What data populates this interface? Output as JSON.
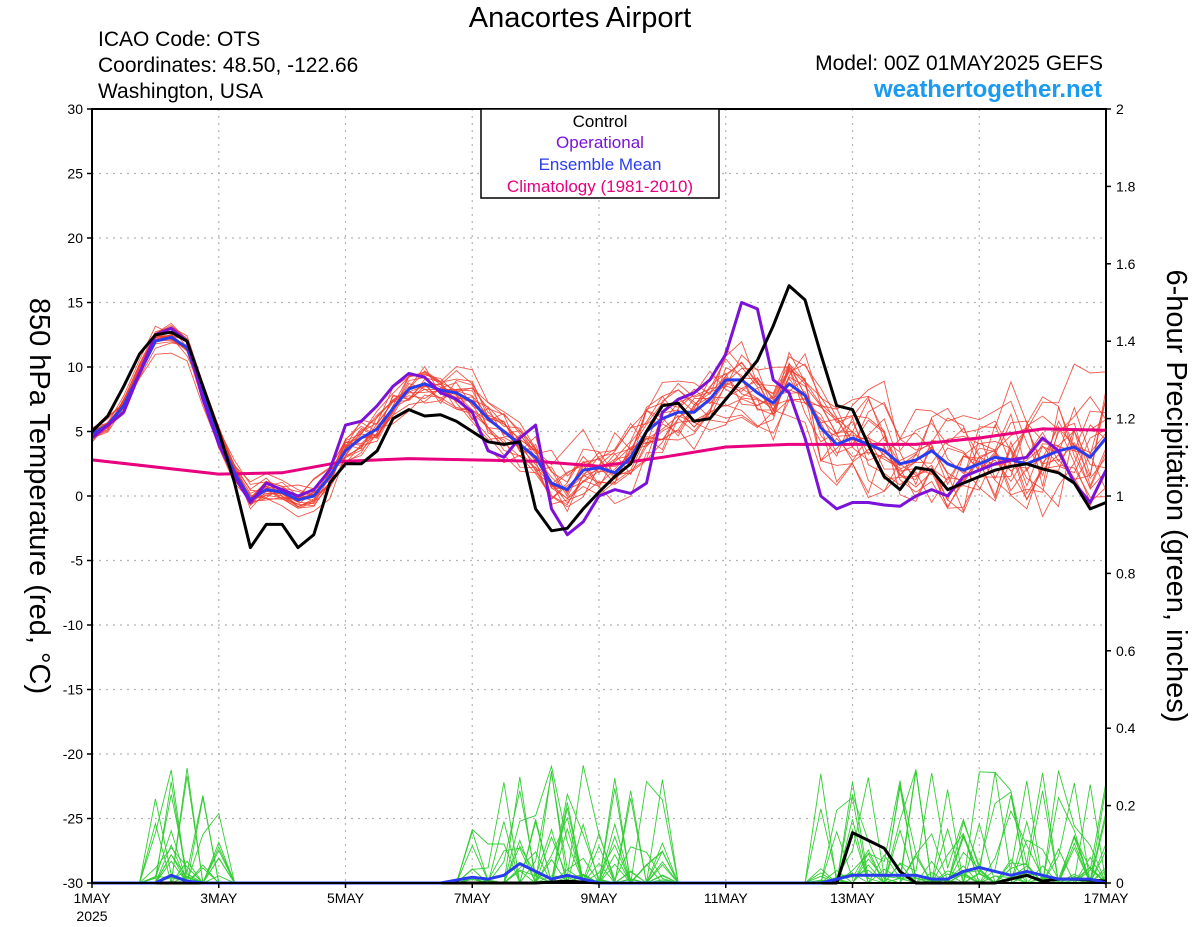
{
  "header": {
    "title": "Anacortes Airport",
    "icao": "ICAO Code: OTS",
    "coordinates": "Coordinates: 48.50, -122.66",
    "region": "Washington, USA",
    "model": "Model: 00Z 01MAY2025 GEFS",
    "brand": "weathertogether.net"
  },
  "colors": {
    "control": "#000000",
    "operational": "#7b12d9",
    "ensemble_mean": "#2a3cf0",
    "climatology": "#e8007f",
    "members_temp": "#ef3b2c",
    "members_precip": "#33cc33",
    "brand": "#1a9af0",
    "grid": "#b4b4b4"
  },
  "chart_data": {
    "type": "line",
    "ylabel_left": "850 hPa Temperature (red, °C)",
    "ylabel_right": "6-hour Precipitation (green, inches)",
    "xlim": [
      0,
      16
    ],
    "ylim_left": [
      -30,
      30
    ],
    "ylim_right": [
      0,
      2
    ],
    "yticks_left": [
      -30,
      -25,
      -20,
      -15,
      -10,
      -5,
      0,
      5,
      10,
      15,
      20,
      25,
      30
    ],
    "yticks_right": [
      0,
      0.2,
      0.4,
      0.6,
      0.8,
      1,
      1.2,
      1.4,
      1.6,
      1.8,
      2
    ],
    "xticks": [
      {
        "x": 0,
        "label": "1MAY"
      },
      {
        "x": 2,
        "label": "3MAY"
      },
      {
        "x": 4,
        "label": "5MAY"
      },
      {
        "x": 6,
        "label": "7MAY"
      },
      {
        "x": 8,
        "label": "9MAY"
      },
      {
        "x": 10,
        "label": "11MAY"
      },
      {
        "x": 12,
        "label": "13MAY"
      },
      {
        "x": 14,
        "label": "15MAY"
      },
      {
        "x": 16,
        "label": "17MAY"
      }
    ],
    "year_label": "2025",
    "grid": true,
    "legend": {
      "placement": "top-center",
      "entries": [
        {
          "label": "Control",
          "color": "#000000"
        },
        {
          "label": "Operational",
          "color": "#7b12d9"
        },
        {
          "label": "Ensemble Mean",
          "color": "#2a3cf0"
        },
        {
          "label": "Climatology (1981-2010)",
          "color": "#e8007f"
        }
      ]
    },
    "temperature_series": [
      {
        "key": "control",
        "color": "#000000",
        "points": [
          [
            0,
            5
          ],
          [
            0.25,
            6.2
          ],
          [
            0.5,
            8.5
          ],
          [
            0.75,
            11
          ],
          [
            1,
            12.5
          ],
          [
            1.25,
            12.7
          ],
          [
            1.5,
            12
          ],
          [
            1.75,
            8.5
          ],
          [
            2,
            5
          ],
          [
            2.25,
            1
          ],
          [
            2.5,
            -4
          ],
          [
            2.75,
            -2.2
          ],
          [
            3,
            -2.2
          ],
          [
            3.25,
            -4
          ],
          [
            3.5,
            -3
          ],
          [
            3.75,
            1
          ],
          [
            4,
            2.5
          ],
          [
            4.25,
            2.5
          ],
          [
            4.5,
            3.5
          ],
          [
            4.75,
            6
          ],
          [
            5,
            6.7
          ],
          [
            5.25,
            6.2
          ],
          [
            5.5,
            6.3
          ],
          [
            5.75,
            5.8
          ],
          [
            6,
            5
          ],
          [
            6.25,
            4.2
          ],
          [
            6.5,
            4
          ],
          [
            6.75,
            4.2
          ],
          [
            7,
            -1
          ],
          [
            7.25,
            -2.7
          ],
          [
            7.5,
            -2.5
          ],
          [
            7.75,
            -1
          ],
          [
            8,
            0.3
          ],
          [
            8.25,
            1.5
          ],
          [
            8.5,
            2.5
          ],
          [
            8.75,
            5
          ],
          [
            9,
            7
          ],
          [
            9.25,
            7.2
          ],
          [
            9.5,
            5.8
          ],
          [
            9.75,
            6
          ],
          [
            10,
            7.5
          ],
          [
            10.25,
            9
          ],
          [
            10.5,
            10.5
          ],
          [
            10.75,
            13.2
          ],
          [
            11,
            16.3
          ],
          [
            11.25,
            15.2
          ],
          [
            11.5,
            11
          ],
          [
            11.75,
            7
          ],
          [
            12,
            6.7
          ],
          [
            12.25,
            4
          ],
          [
            12.5,
            1.5
          ],
          [
            12.75,
            0.5
          ],
          [
            13,
            2.2
          ],
          [
            13.25,
            2
          ],
          [
            13.5,
            0.5
          ],
          [
            13.75,
            1
          ],
          [
            14,
            1.5
          ],
          [
            14.25,
            2
          ],
          [
            14.5,
            2.3
          ],
          [
            14.75,
            2.5
          ],
          [
            15,
            2.1
          ],
          [
            15.25,
            1.8
          ],
          [
            15.5,
            1
          ],
          [
            15.75,
            -1
          ],
          [
            16,
            -0.5
          ]
        ]
      },
      {
        "key": "operational",
        "color": "#7b12d9",
        "points": [
          [
            0,
            4.5
          ],
          [
            0.25,
            5.5
          ],
          [
            0.5,
            6.5
          ],
          [
            0.75,
            9.5
          ],
          [
            1,
            12.5
          ],
          [
            1.25,
            13
          ],
          [
            1.5,
            12
          ],
          [
            1.75,
            7.5
          ],
          [
            2,
            4
          ],
          [
            2.25,
            1.5
          ],
          [
            2.5,
            -0.5
          ],
          [
            2.75,
            1
          ],
          [
            3,
            0.5
          ],
          [
            3.25,
            0
          ],
          [
            3.5,
            0.5
          ],
          [
            3.75,
            2
          ],
          [
            4,
            5.5
          ],
          [
            4.25,
            5.8
          ],
          [
            4.5,
            7
          ],
          [
            4.75,
            8.5
          ],
          [
            5,
            9.5
          ],
          [
            5.25,
            9.2
          ],
          [
            5.5,
            8
          ],
          [
            5.75,
            7.5
          ],
          [
            6,
            6.5
          ],
          [
            6.25,
            3.5
          ],
          [
            6.5,
            3
          ],
          [
            6.75,
            4.5
          ],
          [
            7,
            5.5
          ],
          [
            7.25,
            -1
          ],
          [
            7.5,
            -3
          ],
          [
            7.75,
            -2
          ],
          [
            8,
            0
          ],
          [
            8.25,
            0.5
          ],
          [
            8.5,
            0.2
          ],
          [
            8.75,
            1
          ],
          [
            9,
            6.5
          ],
          [
            9.25,
            7.5
          ],
          [
            9.5,
            8
          ],
          [
            9.75,
            9
          ],
          [
            10,
            11
          ],
          [
            10.25,
            15
          ],
          [
            10.5,
            14.5
          ],
          [
            10.75,
            9
          ],
          [
            11,
            8
          ],
          [
            11.25,
            4.5
          ],
          [
            11.5,
            0
          ],
          [
            11.75,
            -1
          ],
          [
            12,
            -0.5
          ],
          [
            12.25,
            -0.5
          ],
          [
            12.5,
            -0.7
          ],
          [
            12.75,
            -0.8
          ],
          [
            13,
            0
          ],
          [
            13.25,
            0.5
          ],
          [
            13.5,
            0
          ],
          [
            13.75,
            1.5
          ],
          [
            14,
            2
          ],
          [
            14.25,
            2.5
          ],
          [
            14.5,
            2.8
          ],
          [
            14.75,
            3
          ],
          [
            15,
            4.5
          ],
          [
            15.25,
            3.5
          ],
          [
            15.5,
            1
          ],
          [
            15.75,
            -0.5
          ],
          [
            16,
            2
          ]
        ]
      },
      {
        "key": "ensemble_mean",
        "color": "#2a3cf0",
        "points": [
          [
            0,
            4.8
          ],
          [
            0.25,
            5.5
          ],
          [
            0.5,
            7
          ],
          [
            0.75,
            9.5
          ],
          [
            1,
            12
          ],
          [
            1.25,
            12.3
          ],
          [
            1.5,
            11.5
          ],
          [
            1.75,
            8
          ],
          [
            2,
            4.5
          ],
          [
            2.25,
            1.8
          ],
          [
            2.5,
            -0.3
          ],
          [
            2.75,
            0.5
          ],
          [
            3,
            0.3
          ],
          [
            3.25,
            -0.3
          ],
          [
            3.5,
            0
          ],
          [
            3.75,
            1.5
          ],
          [
            4,
            3.5
          ],
          [
            4.25,
            4.5
          ],
          [
            4.5,
            5.2
          ],
          [
            4.75,
            6.8
          ],
          [
            5,
            8.3
          ],
          [
            5.25,
            8.7
          ],
          [
            5.5,
            8.2
          ],
          [
            5.75,
            8
          ],
          [
            6,
            7.3
          ],
          [
            6.25,
            6
          ],
          [
            6.5,
            5
          ],
          [
            6.75,
            4
          ],
          [
            7,
            3
          ],
          [
            7.25,
            1
          ],
          [
            7.5,
            0.5
          ],
          [
            7.75,
            2
          ],
          [
            8,
            2.2
          ],
          [
            8.25,
            1.8
          ],
          [
            8.5,
            3
          ],
          [
            8.75,
            5
          ],
          [
            9,
            6
          ],
          [
            9.25,
            6.5
          ],
          [
            9.5,
            6.5
          ],
          [
            9.75,
            7.5
          ],
          [
            10,
            9
          ],
          [
            10.25,
            9
          ],
          [
            10.5,
            8
          ],
          [
            10.75,
            7.2
          ],
          [
            11,
            8.7
          ],
          [
            11.25,
            7.8
          ],
          [
            11.5,
            5.3
          ],
          [
            11.75,
            4
          ],
          [
            12,
            4.5
          ],
          [
            12.25,
            4
          ],
          [
            12.5,
            3.5
          ],
          [
            12.75,
            2.5
          ],
          [
            13,
            2.8
          ],
          [
            13.25,
            3.5
          ],
          [
            13.5,
            2.5
          ],
          [
            13.75,
            2
          ],
          [
            14,
            2.5
          ],
          [
            14.25,
            3
          ],
          [
            14.5,
            2.8
          ],
          [
            14.75,
            2.5
          ],
          [
            15,
            3
          ],
          [
            15.25,
            3.5
          ],
          [
            15.5,
            3.8
          ],
          [
            15.75,
            3
          ],
          [
            16,
            4.5
          ]
        ]
      },
      {
        "key": "climatology",
        "color": "#e8007f",
        "points": [
          [
            0,
            2.8
          ],
          [
            2,
            1.7
          ],
          [
            3,
            1.8
          ],
          [
            4,
            2.7
          ],
          [
            5,
            2.9
          ],
          [
            7,
            2.7
          ],
          [
            8,
            2.3
          ],
          [
            9,
            3
          ],
          [
            10,
            3.8
          ],
          [
            11,
            4
          ],
          [
            13,
            4
          ],
          [
            14,
            4.5
          ],
          [
            15,
            5.2
          ],
          [
            16,
            5.1
          ]
        ]
      }
    ],
    "precipitation_series": [
      {
        "key": "control",
        "color": "#000000",
        "points": [
          [
            0,
            0
          ],
          [
            7,
            0
          ],
          [
            7.5,
            0.005
          ],
          [
            8,
            0
          ],
          [
            11.75,
            0
          ],
          [
            12,
            0.13
          ],
          [
            12.25,
            0.11
          ],
          [
            12.5,
            0.09
          ],
          [
            12.75,
            0.03
          ],
          [
            13,
            0
          ],
          [
            14.25,
            0
          ],
          [
            14.5,
            0.01
          ],
          [
            14.75,
            0.02
          ],
          [
            15,
            0.005
          ],
          [
            15.25,
            0.01
          ],
          [
            15.5,
            0.01
          ],
          [
            16,
            0.005
          ]
        ]
      },
      {
        "key": "ensemble_mean",
        "color": "#2a3cf0",
        "points": [
          [
            0,
            0
          ],
          [
            1,
            0
          ],
          [
            1.25,
            0.02
          ],
          [
            1.5,
            0.005
          ],
          [
            1.75,
            0
          ],
          [
            5.5,
            0
          ],
          [
            6,
            0.015
          ],
          [
            6.25,
            0.01
          ],
          [
            6.5,
            0.02
          ],
          [
            6.75,
            0.05
          ],
          [
            7,
            0.03
          ],
          [
            7.25,
            0.01
          ],
          [
            7.5,
            0.02
          ],
          [
            7.75,
            0.01
          ],
          [
            8,
            0
          ],
          [
            11.5,
            0
          ],
          [
            12,
            0.02
          ],
          [
            12.5,
            0.02
          ],
          [
            13,
            0.02
          ],
          [
            13.25,
            0.01
          ],
          [
            13.5,
            0.01
          ],
          [
            13.75,
            0.03
          ],
          [
            14,
            0.04
          ],
          [
            14.25,
            0.03
          ],
          [
            14.5,
            0.02
          ],
          [
            14.75,
            0.03
          ],
          [
            15,
            0.02
          ],
          [
            15.25,
            0.01
          ],
          [
            15.5,
            0.01
          ],
          [
            15.75,
            0.01
          ],
          [
            16,
            0
          ]
        ]
      }
    ]
  }
}
